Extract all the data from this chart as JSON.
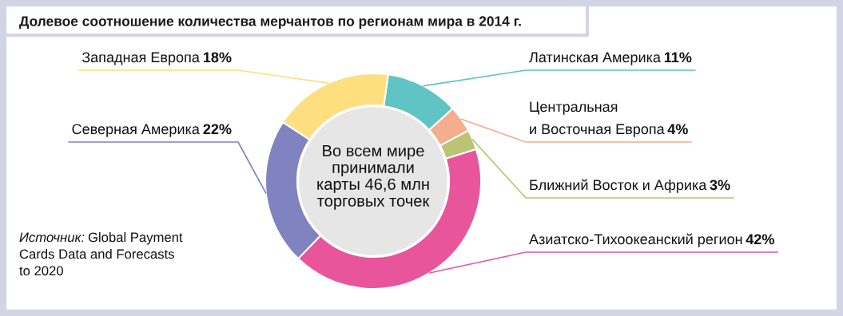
{
  "chart_data": {
    "type": "donut",
    "title": "Долевое соотношение количества мерчантов по регионам мира в 2014 г.",
    "categories": [
      "Латинская Америка",
      "Центральная\nи Восточная Европа",
      "Ближний Восток и Африка",
      "Азиатско-Тихоокеанский регион",
      "Северная Америка",
      "Западная Европа"
    ],
    "values": [
      11,
      4,
      3,
      42,
      22,
      18
    ],
    "value_labels": [
      "11%",
      "4%",
      "3%",
      "42%",
      "22%",
      "18%"
    ],
    "colors": [
      "#5fc4c3",
      "#f4ad8d",
      "#bcc375",
      "#e8559a",
      "#8083c0",
      "#fddf80"
    ],
    "annotations": [
      "Во всем мире\nпринимали\nкарты 46,6 млн\nторговых точек",
      "Источник: Global Payment\nCards Data and Forecasts\nto 2020"
    ]
  }
}
